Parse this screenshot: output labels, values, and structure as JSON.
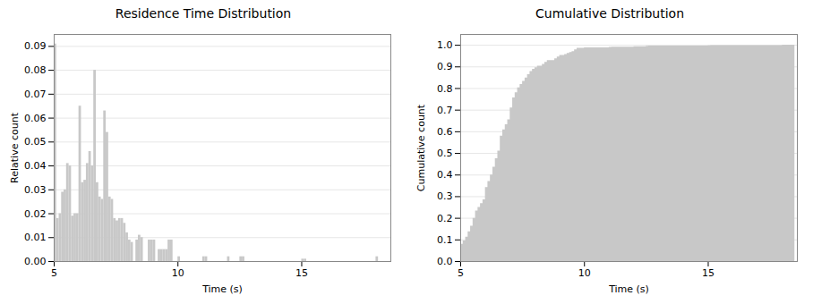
{
  "chart_data": [
    {
      "type": "histogram",
      "title": "Residence Time Distribution",
      "xlabel": "Time (s)",
      "ylabel": "Relative count",
      "bins": [
        5.0,
        5.1,
        5.2,
        5.3,
        5.4,
        5.5,
        5.6,
        5.7,
        5.8,
        5.9,
        6.0,
        6.1,
        6.2,
        6.3,
        6.4,
        6.5,
        6.6,
        6.7,
        6.8,
        6.9,
        7.0,
        7.1,
        7.2,
        7.3,
        7.4,
        7.5,
        7.6,
        7.7,
        7.8,
        7.9,
        8.0,
        8.1,
        8.2,
        8.3,
        8.4,
        8.5,
        8.6,
        8.7,
        8.8,
        8.9,
        9.0,
        9.1,
        9.2,
        9.3,
        9.4,
        9.5,
        9.6,
        9.7,
        9.8,
        9.9,
        10.0,
        10.1,
        10.2,
        10.3,
        10.4,
        10.5,
        10.6,
        10.7,
        10.8,
        10.9,
        11.0,
        11.1,
        11.2,
        11.3,
        11.4,
        11.5,
        11.6,
        11.7,
        11.8,
        11.9,
        12.0,
        12.1,
        12.2,
        12.3,
        12.4,
        12.5,
        12.6,
        12.7,
        12.8,
        12.9,
        13.0,
        13.1,
        13.2,
        13.3,
        13.4,
        13.5,
        13.6,
        13.7,
        13.8,
        13.9,
        14.0,
        14.1,
        14.2,
        14.3,
        14.4,
        14.5,
        14.6,
        14.7,
        14.8,
        14.9,
        15.0,
        15.1,
        15.2,
        15.3,
        15.4,
        15.5,
        15.6,
        15.7,
        15.8,
        15.9,
        16.0,
        16.1,
        16.2,
        16.3,
        16.4,
        16.5,
        16.6,
        16.7,
        16.8,
        16.9,
        17.0,
        17.1,
        17.2,
        17.3,
        17.4,
        17.5,
        17.6,
        17.7,
        17.8,
        17.9,
        18.0,
        18.1,
        18.2,
        18.3,
        18.4,
        18.5
      ],
      "values": [
        0.091,
        0.018,
        0.02,
        0.029,
        0.03,
        0.041,
        0.04,
        0.019,
        0.02,
        0.02,
        0.065,
        0.033,
        0.034,
        0.041,
        0.046,
        0.04,
        0.08,
        0.033,
        0.027,
        0.026,
        0.063,
        0.054,
        0.027,
        0.026,
        0.018,
        0.017,
        0.018,
        0.018,
        0.016,
        0.012,
        0.009,
        0.008,
        0.0,
        0.009,
        0.011,
        0.01,
        0.0,
        0.0,
        0.009,
        0.009,
        0.009,
        0.0,
        0.005,
        0.005,
        0.005,
        0.005,
        0.009,
        0.009,
        0.0,
        0.0,
        0.002,
        0.0,
        0.0,
        0.0,
        0.0,
        0.0,
        0.0,
        0.0,
        0.0,
        0.0,
        0.002,
        0.002,
        0.0,
        0.0,
        0.0,
        0.0,
        0.0,
        0.0,
        0.0,
        0.0,
        0.002,
        0.0,
        0.0,
        0.0,
        0.0,
        0.002,
        0.002,
        0.0,
        0.0,
        0.0,
        0.0,
        0.0,
        0.0,
        0.0,
        0.0,
        0.0,
        0.0,
        0.0,
        0.0,
        0.0,
        0.0,
        0.0,
        0.0,
        0.0,
        0.0,
        0.0,
        0.0,
        0.0,
        0.0,
        0.0,
        0.001,
        0.001,
        0.0,
        0.0,
        0.0,
        0.0,
        0.0,
        0.0,
        0.0,
        0.0,
        0.0,
        0.0,
        0.0,
        0.0,
        0.0,
        0.0,
        0.0,
        0.0,
        0.0,
        0.0,
        0.0,
        0.0,
        0.0,
        0.0,
        0.0,
        0.0,
        0.0,
        0.0,
        0.0,
        0.0,
        0.002,
        0.0,
        0.0,
        0.0,
        0.0
      ],
      "color": "#c8c8c8",
      "xlim": [
        5,
        18.6
      ],
      "ylim": [
        0,
        0.095
      ],
      "xticks": [
        5,
        10,
        15
      ],
      "yticks": [
        {
          "value": 0,
          "label": "0.00"
        },
        {
          "value": 0.01,
          "label": "0.01"
        },
        {
          "value": 0.02,
          "label": "0.02"
        },
        {
          "value": 0.03,
          "label": "0.03"
        },
        {
          "value": 0.04,
          "label": "0.04"
        },
        {
          "value": 0.05,
          "label": "0.05"
        },
        {
          "value": 0.06,
          "label": "0.06"
        },
        {
          "value": 0.07,
          "label": "0.07"
        },
        {
          "value": 0.08,
          "label": "0.08"
        },
        {
          "value": 0.09,
          "label": "0.09"
        }
      ],
      "grid": true
    },
    {
      "type": "area",
      "title": "Cumulative Distribution",
      "xlabel": "Time (s)",
      "ylabel": "Cumulative count",
      "bins": [
        5.0,
        5.1,
        5.2,
        5.3,
        5.4,
        5.5,
        5.6,
        5.7,
        5.8,
        5.9,
        6.0,
        6.1,
        6.2,
        6.3,
        6.4,
        6.5,
        6.6,
        6.7,
        6.8,
        6.9,
        7.0,
        7.1,
        7.2,
        7.3,
        7.4,
        7.5,
        7.6,
        7.7,
        7.8,
        7.9,
        8.0,
        8.1,
        8.2,
        8.3,
        8.4,
        8.5,
        8.6,
        8.7,
        8.8,
        8.9,
        9.0,
        9.1,
        9.2,
        9.3,
        9.4,
        9.5,
        9.6,
        9.7,
        9.8,
        9.9,
        10.0,
        10.1,
        10.2,
        10.3,
        10.4,
        10.5,
        10.6,
        10.7,
        10.8,
        10.9,
        11.0,
        11.1,
        11.2,
        11.3,
        11.4,
        11.5,
        11.6,
        11.7,
        11.8,
        11.9,
        12.0,
        12.1,
        12.2,
        12.3,
        12.4,
        12.5,
        12.6,
        12.7,
        12.8,
        12.9,
        13.0,
        13.1,
        13.2,
        13.3,
        13.4,
        13.5,
        13.6,
        13.7,
        13.8,
        13.9,
        14.0,
        14.1,
        14.2,
        14.3,
        14.4,
        14.5,
        14.6,
        14.7,
        14.8,
        14.9,
        15.0,
        15.1,
        15.2,
        15.3,
        15.4,
        15.5,
        15.6,
        15.7,
        15.8,
        15.9,
        16.0,
        16.1,
        16.2,
        16.3,
        16.4,
        16.5,
        16.6,
        16.7,
        16.8,
        16.9,
        17.0,
        17.1,
        17.2,
        17.3,
        17.4,
        17.5,
        17.6,
        17.7,
        17.8,
        17.9,
        18.0,
        18.1,
        18.2,
        18.3,
        18.4,
        18.5
      ],
      "values": [
        0.0791,
        0.0948,
        0.1122,
        0.1374,
        0.1635,
        0.1991,
        0.2339,
        0.2504,
        0.2678,
        0.2852,
        0.3417,
        0.3704,
        0.4,
        0.4357,
        0.4757,
        0.5104,
        0.58,
        0.6087,
        0.6322,
        0.6548,
        0.7096,
        0.7565,
        0.78,
        0.8026,
        0.8183,
        0.833,
        0.8487,
        0.8643,
        0.8783,
        0.8887,
        0.8965,
        0.9035,
        0.9035,
        0.9113,
        0.9209,
        0.9296,
        0.9296,
        0.9296,
        0.9374,
        0.9452,
        0.953,
        0.953,
        0.9574,
        0.9617,
        0.9661,
        0.9704,
        0.9783,
        0.9861,
        0.9861,
        0.9861,
        0.9878,
        0.9878,
        0.9878,
        0.9878,
        0.9878,
        0.9878,
        0.9878,
        0.9878,
        0.9878,
        0.9878,
        0.9896,
        0.9913,
        0.9913,
        0.9913,
        0.9913,
        0.9913,
        0.9913,
        0.9913,
        0.9913,
        0.9913,
        0.993,
        0.993,
        0.993,
        0.993,
        0.993,
        0.9948,
        0.9965,
        0.9965,
        0.9965,
        0.9965,
        0.9965,
        0.9965,
        0.9965,
        0.9965,
        0.9965,
        0.9965,
        0.9965,
        0.9965,
        0.9965,
        0.9965,
        0.9965,
        0.9965,
        0.9965,
        0.9965,
        0.9965,
        0.9965,
        0.9965,
        0.9965,
        0.9965,
        0.9965,
        0.9974,
        0.9983,
        0.9983,
        0.9983,
        0.9983,
        0.9983,
        0.9983,
        0.9983,
        0.9983,
        0.9983,
        0.9983,
        0.9983,
        0.9983,
        0.9983,
        0.9983,
        0.9983,
        0.9983,
        0.9983,
        0.9983,
        0.9983,
        0.9983,
        0.9983,
        0.9983,
        0.9983,
        0.9983,
        0.9983,
        0.9983,
        0.9983,
        0.9983,
        0.9983,
        1,
        1,
        1,
        1,
        1
      ],
      "color": "#c8c8c8",
      "xlim": [
        5,
        18.6
      ],
      "ylim": [
        0,
        1.05
      ],
      "xticks": [
        5,
        10,
        15
      ],
      "yticks": [
        {
          "value": 0.0,
          "label": "0.0"
        },
        {
          "value": 0.1,
          "label": "0.1"
        },
        {
          "value": 0.2,
          "label": "0.2"
        },
        {
          "value": 0.3,
          "label": "0.3"
        },
        {
          "value": 0.4,
          "label": "0.4"
        },
        {
          "value": 0.5,
          "label": "0.5"
        },
        {
          "value": 0.6,
          "label": "0.6"
        },
        {
          "value": 0.7,
          "label": "0.7"
        },
        {
          "value": 0.8,
          "label": "0.8"
        },
        {
          "value": 0.9,
          "label": "0.9"
        },
        {
          "value": 1.0,
          "label": "1.0"
        }
      ],
      "grid": true
    }
  ]
}
